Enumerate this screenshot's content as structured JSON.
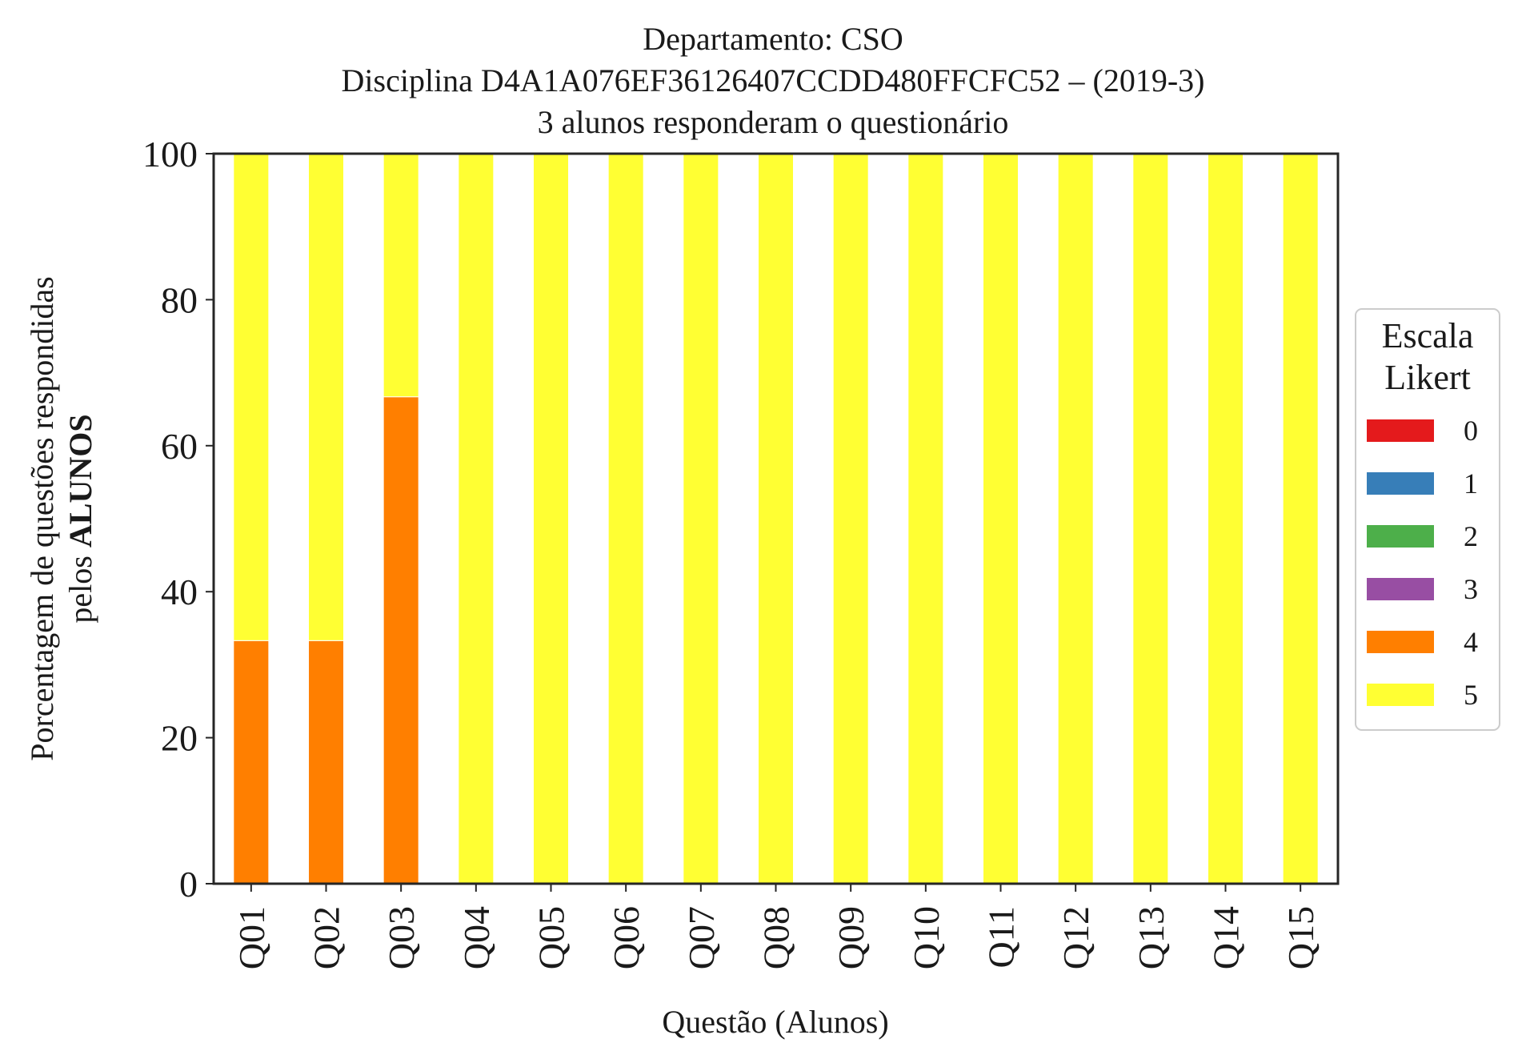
{
  "chart_data": {
    "type": "bar",
    "stacked": true,
    "title": "Departamento: CSO",
    "subtitle": "Disciplina D4A1A076EF36126407CCDD480FFCFC52 – (2019-3)",
    "subtitle2": "3 alunos responderam o questionário",
    "xlabel": "Questão (Alunos)",
    "ylabel_line1": "Porcentagem de questões respondidas",
    "ylabel_line2_prefix": "pelos ",
    "ylabel_line2_bold": "ALUNOS",
    "ylim": [
      0,
      100
    ],
    "yticks": [
      "0",
      "20",
      "40",
      "60",
      "80",
      "100"
    ],
    "grid": false,
    "legend_title_line1": "Escala",
    "legend_title_line2": "Likert",
    "legend_placement": "center-right",
    "categories": [
      "Q01",
      "Q02",
      "Q03",
      "Q04",
      "Q05",
      "Q06",
      "Q07",
      "Q08",
      "Q09",
      "Q10",
      "Q11",
      "Q12",
      "Q13",
      "Q14",
      "Q15"
    ],
    "series": [
      {
        "name": "0",
        "color": "#e41a1c",
        "values": [
          0,
          0,
          0,
          0,
          0,
          0,
          0,
          0,
          0,
          0,
          0,
          0,
          0,
          0,
          0
        ]
      },
      {
        "name": "1",
        "color": "#377eb8",
        "values": [
          0,
          0,
          0,
          0,
          0,
          0,
          0,
          0,
          0,
          0,
          0,
          0,
          0,
          0,
          0
        ]
      },
      {
        "name": "2",
        "color": "#4daf4a",
        "values": [
          0,
          0,
          0,
          0,
          0,
          0,
          0,
          0,
          0,
          0,
          0,
          0,
          0,
          0,
          0
        ]
      },
      {
        "name": "3",
        "color": "#984ea3",
        "values": [
          0,
          0,
          0,
          0,
          0,
          0,
          0,
          0,
          0,
          0,
          0,
          0,
          0,
          0,
          0
        ]
      },
      {
        "name": "4",
        "color": "#ff7f00",
        "values": [
          33.3,
          33.3,
          66.7,
          0,
          0,
          0,
          0,
          0,
          0,
          0,
          0,
          0,
          0,
          0,
          0
        ]
      },
      {
        "name": "5",
        "color": "#ffff33",
        "values": [
          66.7,
          66.7,
          33.3,
          100,
          100,
          100,
          100,
          100,
          100,
          100,
          100,
          100,
          100,
          100,
          100
        ]
      }
    ]
  }
}
